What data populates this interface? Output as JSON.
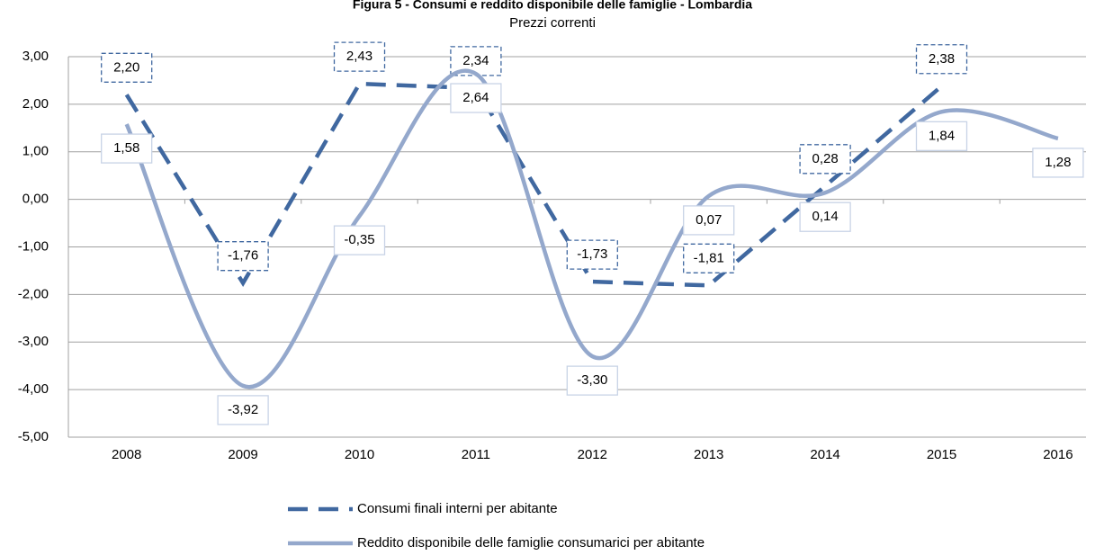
{
  "chart_data": {
    "type": "line",
    "title": "Figura 5 - Consumi e reddito disponibile delle famiglie - Lombardia",
    "subtitle": "Prezzi correnti",
    "categories": [
      "2008",
      "2009",
      "2010",
      "2011",
      "2012",
      "2013",
      "2014",
      "2015",
      "2016"
    ],
    "series": [
      {
        "name": "Consumi finali interni per abitante",
        "color": "#4068a0",
        "dashed": true,
        "smooth": false,
        "values": [
          2.2,
          -1.76,
          2.43,
          2.34,
          -1.73,
          -1.81,
          0.28,
          2.38,
          null
        ],
        "value_labels": [
          "2,20",
          "-1,76",
          "2,43",
          "2,34",
          "-1,73",
          "-1,81",
          "0,28",
          "2,38",
          null
        ]
      },
      {
        "name": "Reddito disponibile delle famiglie consumarici per abitante",
        "color": "#94a8cc",
        "dashed": false,
        "smooth": true,
        "values": [
          1.58,
          -3.92,
          -0.35,
          2.64,
          -3.3,
          0.07,
          0.14,
          1.84,
          1.28
        ],
        "value_labels": [
          "1,58",
          "-3,92",
          "-0,35",
          "2,64",
          "-3,30",
          "0,07",
          "0,14",
          "1,84",
          "1,28"
        ]
      }
    ],
    "ylim": [
      -5,
      3
    ],
    "yticks": [
      {
        "value": -5,
        "label": "-5,00"
      },
      {
        "value": -4,
        "label": "-4,00"
      },
      {
        "value": -3,
        "label": "-3,00"
      },
      {
        "value": -2,
        "label": "-2,00"
      },
      {
        "value": -1,
        "label": "-1,00"
      },
      {
        "value": 0,
        "label": "0,00"
      },
      {
        "value": 1,
        "label": "1,00"
      },
      {
        "value": 2,
        "label": "2,00"
      },
      {
        "value": 3,
        "label": "3,00"
      }
    ],
    "grid": true,
    "legend": "bottom"
  }
}
